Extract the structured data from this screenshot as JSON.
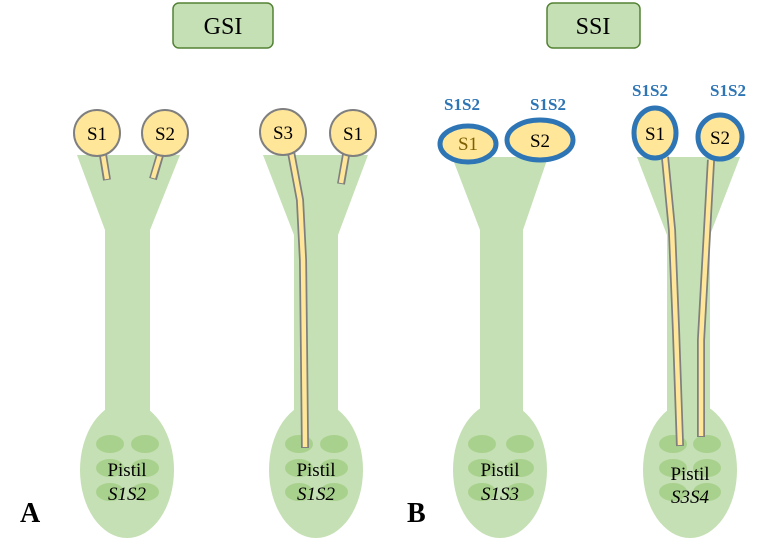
{
  "headers": {
    "gsi": "GSI",
    "ssi": "SSI"
  },
  "panels": {
    "a": "A",
    "b": "B"
  },
  "pistils": [
    {
      "label": "Pistil",
      "genotype": "S1S2",
      "pollen": [
        "S1",
        "S2"
      ]
    },
    {
      "label": "Pistil",
      "genotype": "S1S2",
      "pollen": [
        "S3",
        "S1"
      ]
    },
    {
      "label": "Pistil",
      "genotype": "S1S3",
      "pollen": [
        "S1",
        "S2"
      ],
      "parent_genotypes": [
        "S1S2",
        "S1S2"
      ]
    },
    {
      "label": "Pistil",
      "genotype": "S3S4",
      "pollen": [
        "S1",
        "S2"
      ],
      "parent_genotypes": [
        "S1S2",
        "S1S2"
      ]
    }
  ],
  "colors": {
    "tissue": "#c5e0b4",
    "ovule": "#a9d18e",
    "pollen": "#ffe699",
    "ssi_coat": "#2e75b6"
  }
}
